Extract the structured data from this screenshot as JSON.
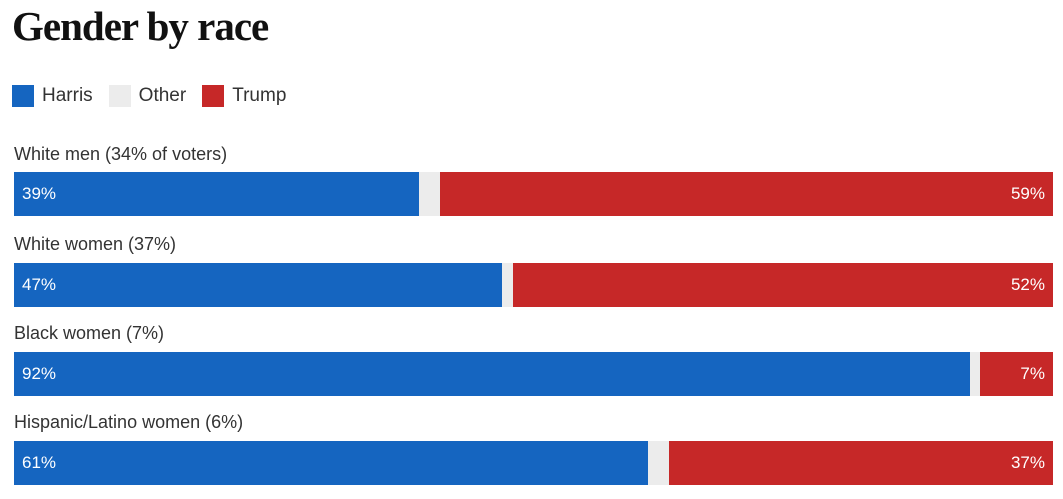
{
  "colors": {
    "harris": "#1565c0",
    "other": "#ececec",
    "trump": "#c62828"
  },
  "chart_data": {
    "type": "bar",
    "orientation": "horizontal",
    "stacked": true,
    "title": "Gender by race",
    "legend": [
      {
        "name": "Harris",
        "color": "#1565c0"
      },
      {
        "name": "Other",
        "color": "#ececec"
      },
      {
        "name": "Trump",
        "color": "#c62828"
      }
    ],
    "legend_position": "top-left",
    "categories": [
      "White men (34% of voters)",
      "White women (37%)",
      "Black women (7%)",
      "Hispanic/Latino women (6%)"
    ],
    "series": [
      {
        "name": "Harris",
        "values": [
          39,
          47,
          92,
          61
        ]
      },
      {
        "name": "Other",
        "values": [
          2,
          1,
          1,
          2
        ]
      },
      {
        "name": "Trump",
        "values": [
          59,
          52,
          7,
          37
        ]
      }
    ],
    "value_labels": {
      "harris": [
        "39%",
        "47%",
        "92%",
        "61%"
      ],
      "trump": [
        "59%",
        "52%",
        "7%",
        "37%"
      ]
    },
    "xlim": [
      0,
      100
    ],
    "unit": "%"
  }
}
